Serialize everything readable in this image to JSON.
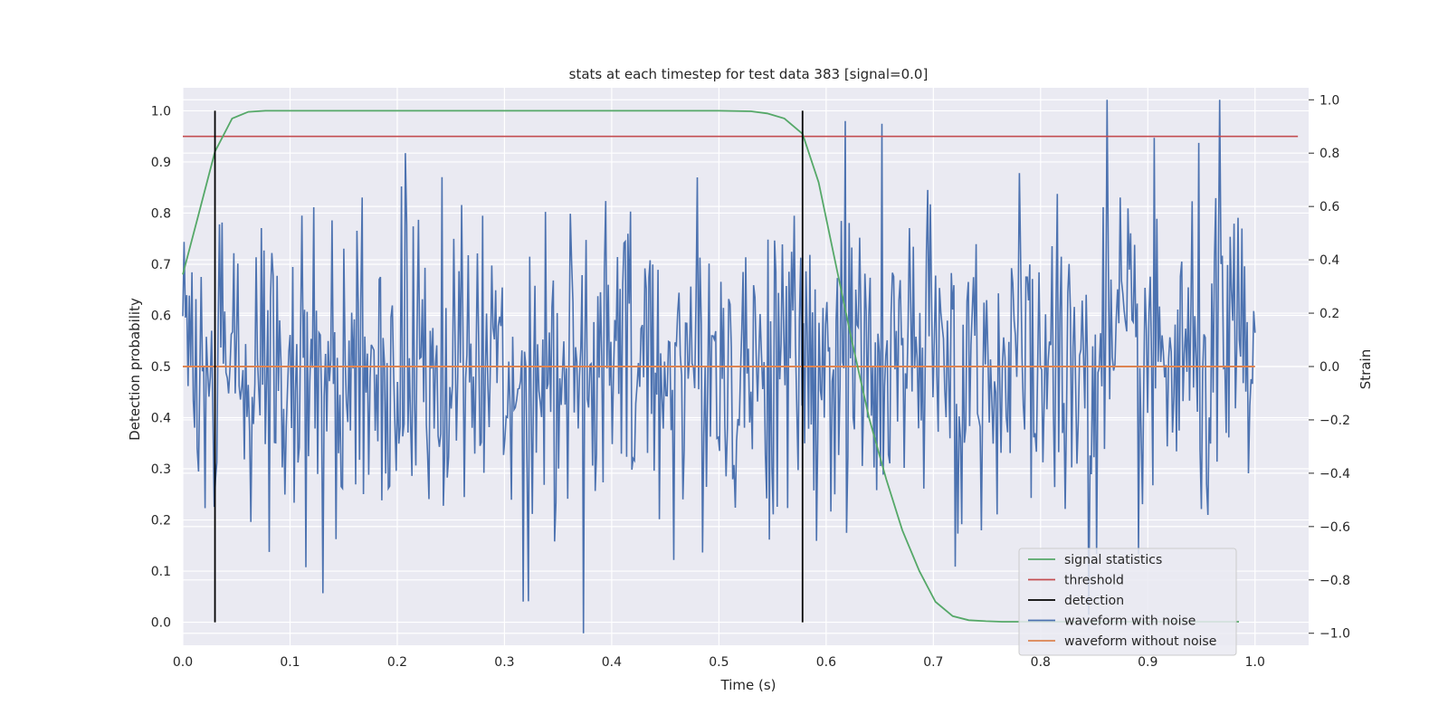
{
  "chart_data": {
    "type": "line",
    "title": "stats at each timestep for test data 383 [signal=0.0]",
    "xlabel": "Time (s)",
    "ylabel": "Detection probability",
    "y2label": "Strain",
    "xlim": [
      0.0,
      1.05
    ],
    "ylim": [
      -0.045,
      1.045
    ],
    "y2lim": [
      -1.045,
      1.045
    ],
    "xticks": [
      "0.0",
      "0.1",
      "0.2",
      "0.3",
      "0.4",
      "0.5",
      "0.6",
      "0.7",
      "0.8",
      "0.9",
      "1.0"
    ],
    "yticks": [
      "0.0",
      "0.1",
      "0.2",
      "0.3",
      "0.4",
      "0.5",
      "0.6",
      "0.7",
      "0.8",
      "0.9",
      "1.0"
    ],
    "y2ticks": [
      "−1.0",
      "−0.8",
      "−0.6",
      "−0.4",
      "−0.2",
      "0.0",
      "0.2",
      "0.4",
      "0.6",
      "0.8",
      "1.0"
    ],
    "grid": true,
    "legend_position": "lower-right",
    "legend": [
      "signal statistics",
      "threshold",
      "detection",
      "waveform with noise",
      "waveform without noise"
    ],
    "colors": {
      "signal_statistics": "#55a868",
      "threshold": "#c44e52",
      "detection": "#000000",
      "waveform_with_noise": "#4c72b0",
      "waveform_without_noise": "#dd8452",
      "background": "#eaeaf2",
      "grid": "#ffffff"
    },
    "signal_statistics": {
      "x": [
        0.0,
        0.015,
        0.03,
        0.046,
        0.061,
        0.077,
        0.1,
        0.2,
        0.3,
        0.4,
        0.5,
        0.53,
        0.545,
        0.561,
        0.578,
        0.593,
        0.609,
        0.624,
        0.64,
        0.656,
        0.671,
        0.687,
        0.702,
        0.718,
        0.733,
        0.749,
        0.764,
        0.8,
        0.9,
        0.985
      ],
      "y": [
        0.68,
        0.8,
        0.92,
        0.985,
        0.998,
        1.0,
        1.0,
        1.0,
        1.0,
        1.0,
        1.0,
        0.999,
        0.995,
        0.985,
        0.955,
        0.86,
        0.7,
        0.55,
        0.4,
        0.28,
        0.18,
        0.1,
        0.04,
        0.012,
        0.004,
        0.002,
        0.001,
        0.001,
        0.001,
        0.001
      ]
    },
    "threshold": {
      "value": 0.95,
      "x_range": [
        0.0,
        1.04
      ]
    },
    "detections": {
      "x": [
        0.03,
        0.578
      ],
      "y_range": [
        0.0,
        1.0
      ]
    },
    "waveform_without_noise": {
      "value": 0.0,
      "x_range": [
        0.0,
        1.0
      ]
    },
    "waveform_with_noise": {
      "axis": "right",
      "x_range": [
        0.0,
        1.0
      ],
      "num_points": 820,
      "min": -1.0,
      "max": 1.0,
      "peaks": [
        {
          "x": 0.208,
          "y": 0.8
        },
        {
          "x": 0.618,
          "y": 0.92
        },
        {
          "x": 0.862,
          "y": 1.0
        },
        {
          "x": 0.967,
          "y": 1.0
        },
        {
          "x": 0.374,
          "y": -1.0
        },
        {
          "x": 0.131,
          "y": -0.85
        },
        {
          "x": 0.322,
          "y": -0.88
        },
        {
          "x": 0.845,
          "y": -0.93
        },
        {
          "x": 0.72,
          "y": -0.75
        }
      ]
    }
  }
}
